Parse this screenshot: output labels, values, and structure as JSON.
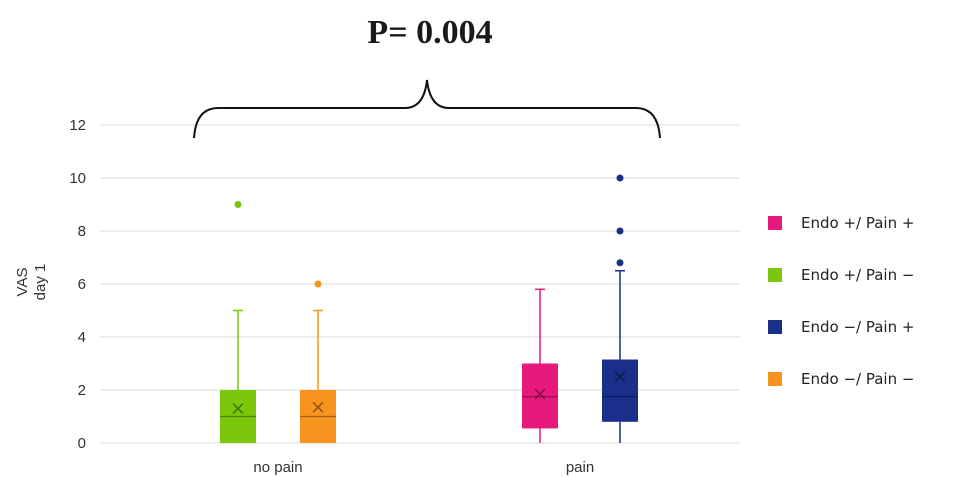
{
  "annotation": {
    "text": "P= 0.004"
  },
  "chart_data": {
    "type": "box",
    "ylabel": [
      "VAS",
      "day 1"
    ],
    "ylim": [
      0,
      12
    ],
    "yticks": [
      0,
      2,
      4,
      6,
      8,
      10,
      12
    ],
    "grid": true,
    "legend_position": "right",
    "categories": [
      "no pain",
      "pain"
    ],
    "series": [
      {
        "name": "Endo +/ Pain +",
        "color": "#e8197d",
        "category": "pain",
        "min": 0,
        "q1": 0.55,
        "median": 1.75,
        "q3": 3.0,
        "max": 5.8,
        "mean": 1.85,
        "outliers": []
      },
      {
        "name": "Endo +/ Pain −",
        "color": "#7ac70c",
        "category": "no pain",
        "min": 0,
        "q1": 0,
        "median": 1.0,
        "q3": 2.0,
        "max": 5.0,
        "mean": 1.3,
        "outliers": [
          9
        ]
      },
      {
        "name": "Endo −/ Pain +",
        "color": "#1a2f8a",
        "category": "pain",
        "min": 0,
        "q1": 0.8,
        "median": 1.75,
        "q3": 3.15,
        "max": 6.5,
        "mean": 2.5,
        "outliers": [
          6.8,
          8,
          10
        ]
      },
      {
        "name": "Endo −/ Pain −",
        "color": "#f7941d",
        "category": "no pain",
        "min": 0,
        "q1": 0,
        "median": 1.0,
        "q3": 2.0,
        "max": 5.0,
        "mean": 1.35,
        "outliers": [
          6
        ]
      }
    ],
    "brace": {
      "from_category": "no pain",
      "to_category": "pain"
    }
  }
}
